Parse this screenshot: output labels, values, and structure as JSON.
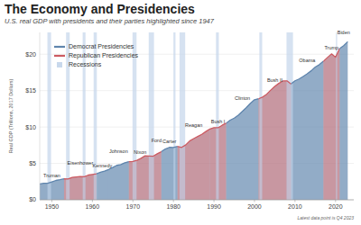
{
  "chart_data": {
    "type": "area",
    "title": "The Economy and Presidencies",
    "subtitle": "U.S. real GDP with presidents and their parties highlighted since 1947",
    "y_label": "Real GDP (Trillions, 2017 Dollars)",
    "note": "Latest data point is Q4 2023",
    "x": [
      1947,
      1948,
      1949,
      1950,
      1951,
      1952,
      1953,
      1954,
      1955,
      1956,
      1957,
      1958,
      1959,
      1960,
      1961,
      1962,
      1963,
      1964,
      1965,
      1966,
      1967,
      1968,
      1969,
      1970,
      1971,
      1972,
      1973,
      1974,
      1975,
      1976,
      1977,
      1978,
      1979,
      1980,
      1981,
      1982,
      1983,
      1984,
      1985,
      1986,
      1987,
      1988,
      1989,
      1990,
      1991,
      1992,
      1993,
      1994,
      1995,
      1996,
      1997,
      1998,
      1999,
      2000,
      2001,
      2002,
      2003,
      2004,
      2005,
      2006,
      2007,
      2008,
      2009,
      2010,
      2011,
      2012,
      2013,
      2014,
      2015,
      2016,
      2017,
      2018,
      2019,
      2020,
      2021,
      2022,
      2023
    ],
    "series": [
      {
        "color": "#8aa5c2",
        "values": [
          2.18,
          2.27,
          2.26,
          2.46,
          2.66,
          2.76,
          2.89,
          2.87,
          3.08,
          3.14,
          3.21,
          3.18,
          3.4,
          3.48,
          3.56,
          3.78,
          3.94,
          4.17,
          4.44,
          4.73,
          4.85,
          5.09,
          5.25,
          5.26,
          5.42,
          5.71,
          6.04,
          6.01,
          5.99,
          6.32,
          6.61,
          6.98,
          7.2,
          7.18,
          7.34,
          7.2,
          7.53,
          8.08,
          8.41,
          8.7,
          9.0,
          9.38,
          9.73,
          9.92,
          9.9,
          10.24,
          10.52,
          10.94,
          11.22,
          11.63,
          12.14,
          12.67,
          13.27,
          13.75,
          13.88,
          14.12,
          14.51,
          15.07,
          15.58,
          16.0,
          16.33,
          16.35,
          15.93,
          16.35,
          16.6,
          16.95,
          17.31,
          17.73,
          18.24,
          18.57,
          19.03,
          19.55,
          20.05,
          19.6,
          20.78,
          21.18,
          21.72
        ]
      }
    ],
    "xlim": [
      1947,
      2024.5
    ],
    "xticks": [
      1950,
      1960,
      1970,
      1980,
      1990,
      2000,
      2010,
      2020
    ],
    "ylim": [
      0,
      23
    ],
    "yticks": [
      {
        "value": 0,
        "label": "$0"
      },
      {
        "value": 5,
        "label": "$5"
      },
      {
        "value": 10,
        "label": "$10"
      },
      {
        "value": 15,
        "label": "$15"
      },
      {
        "value": 20,
        "label": "$20"
      }
    ],
    "grid": true,
    "legend": "upper left",
    "parties": [
      {
        "name": "Democrat Presidencies",
        "color": "#5f85ad",
        "terms": [
          {
            "label": "Truman",
            "start": 1947,
            "end": 1953
          },
          {
            "label": "Kennedy",
            "start": 1961,
            "end": 1963.9
          },
          {
            "label": "Johnson",
            "start": 1963.9,
            "end": 1969
          },
          {
            "label": "Carter",
            "start": 1977,
            "end": 1981
          },
          {
            "label": "Clinton",
            "start": 1993,
            "end": 2001
          },
          {
            "label": "Obama",
            "start": 2009,
            "end": 2017
          },
          {
            "label": "Biden",
            "start": 2021,
            "end": 2024.5
          }
        ]
      },
      {
        "name": "Republican Presidencies",
        "color": "#cc5b62",
        "terms": [
          {
            "label": "Eisenhower",
            "start": 1953,
            "end": 1961
          },
          {
            "label": "Nixon",
            "start": 1969,
            "end": 1974.6
          },
          {
            "label": "Ford",
            "start": 1974.6,
            "end": 1977
          },
          {
            "label": "Reagan",
            "start": 1981,
            "end": 1989
          },
          {
            "label": "Bush I",
            "start": 1989,
            "end": 1993
          },
          {
            "label": "Bush II",
            "start": 2001,
            "end": 2009
          },
          {
            "label": "Trump",
            "start": 2017,
            "end": 2021
          }
        ]
      }
    ],
    "recessions": {
      "name": "Recessions",
      "color": "#c8d8ec",
      "periods": [
        {
          "start": 1948.9,
          "end": 1949.8
        },
        {
          "start": 1953.5,
          "end": 1954.4
        },
        {
          "start": 1957.6,
          "end": 1958.3
        },
        {
          "start": 1960.3,
          "end": 1961.1
        },
        {
          "start": 1969.9,
          "end": 1970.9
        },
        {
          "start": 1973.9,
          "end": 1975.2
        },
        {
          "start": 1980.0,
          "end": 1980.5
        },
        {
          "start": 1981.5,
          "end": 1982.9
        },
        {
          "start": 1990.5,
          "end": 1991.2
        },
        {
          "start": 2001.2,
          "end": 2001.9
        },
        {
          "start": 2007.9,
          "end": 2009.5
        },
        {
          "start": 2020.1,
          "end": 2020.4
        }
      ]
    }
  }
}
